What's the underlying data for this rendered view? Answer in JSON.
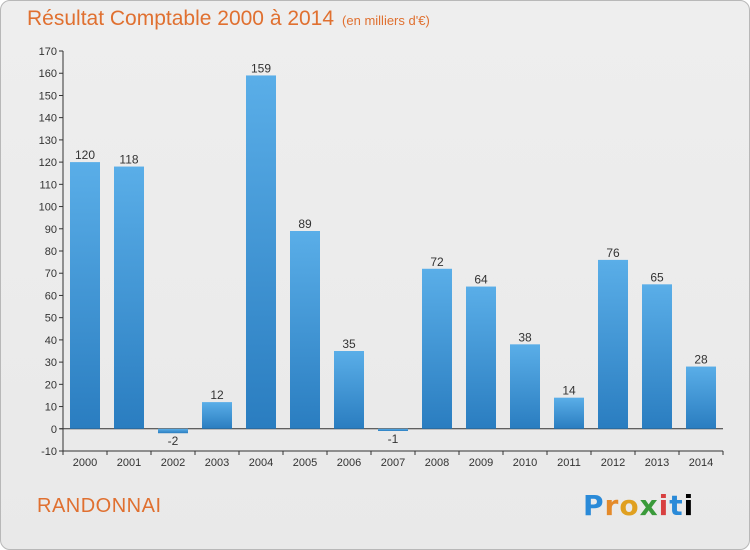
{
  "title": "Résultat Comptable 2000 à 2014",
  "unit": "(en milliers d'€)",
  "commune": "RANDONNAI",
  "logo": [
    "P",
    "r",
    "o",
    "x",
    "i",
    "t",
    "i"
  ],
  "colors": {
    "title": "#e07030",
    "bar_light": "#5aaee8",
    "bar_dark": "#2a7dc0"
  },
  "chart_data": {
    "type": "bar",
    "title": "Résultat Comptable 2000 à 2014",
    "xlabel": "",
    "ylabel": "",
    "categories": [
      "2000",
      "2001",
      "2002",
      "2003",
      "2004",
      "2005",
      "2006",
      "2007",
      "2008",
      "2009",
      "2010",
      "2011",
      "2012",
      "2013",
      "2014"
    ],
    "values": [
      120,
      118,
      -2,
      12,
      159,
      89,
      35,
      -1,
      72,
      64,
      38,
      14,
      76,
      65,
      28
    ],
    "ylim": [
      -10,
      170
    ],
    "yticks": [
      -10,
      0,
      10,
      20,
      30,
      40,
      50,
      60,
      70,
      80,
      90,
      100,
      110,
      120,
      130,
      140,
      150,
      160,
      170
    ],
    "grid": false,
    "legend": "none"
  }
}
